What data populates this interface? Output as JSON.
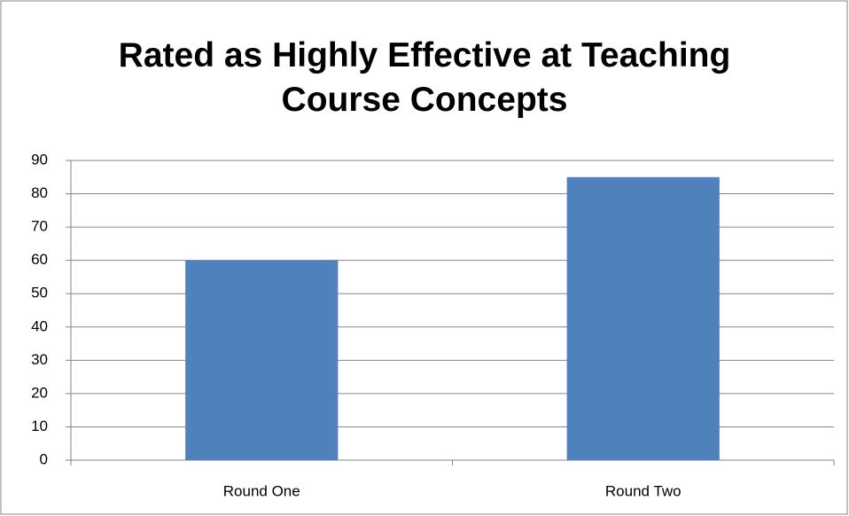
{
  "chart_data": {
    "type": "bar",
    "title": "Rated as Highly Effective at Teaching Course Concepts",
    "categories": [
      "Round One",
      "Round Two"
    ],
    "values": [
      60,
      85
    ],
    "color": "#4f81bd",
    "ylim": [
      0,
      90
    ],
    "yticks": [
      0,
      10,
      20,
      30,
      40,
      50,
      60,
      70,
      80,
      90
    ],
    "grid": true
  }
}
